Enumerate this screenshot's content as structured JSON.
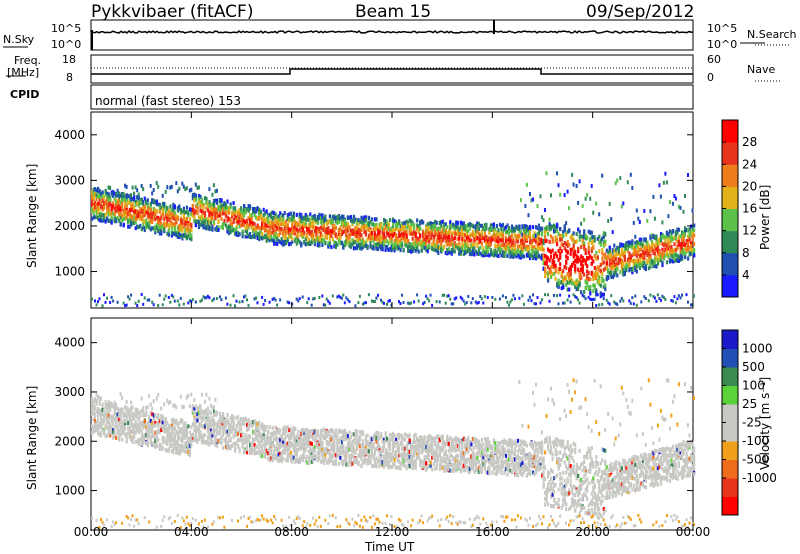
{
  "header": {
    "radar": "Pykkvibaer (fitACF)",
    "beam": "Beam 15",
    "date": "09/Sep/2012"
  },
  "noise_panel": {
    "left_label": "N.Sky",
    "right_label": "N.Search",
    "left_ticks": [
      "10^5",
      "10^0"
    ],
    "right_ticks": [
      "10^5",
      "10^0"
    ]
  },
  "freq_panel": {
    "left_label_1": "Freq.",
    "left_label_2": "[MHz]",
    "right_label": "Nave",
    "left_ticks": [
      "18",
      "8"
    ],
    "right_ticks": [
      "60",
      "0"
    ]
  },
  "cpid": {
    "label": "CPID",
    "text": "normal (fast stereo) 153"
  },
  "chart_data": [
    {
      "type": "heatmap",
      "quantity": "Power",
      "ylabel": "Slant Range [km]",
      "yticks": [
        1000,
        2000,
        3000,
        4000
      ],
      "ylim": [
        200,
        4500
      ],
      "colorbar_label": "Power [dB]",
      "colorbar_ticks": [
        "4",
        "8",
        "12",
        "16",
        "20",
        "24",
        "28"
      ],
      "colors": [
        "#1a1aff",
        "#1f4fb0",
        "#2f8a58",
        "#5cc24a",
        "#e3b21a",
        "#ee7d1c",
        "#e8341c",
        "#ff0000"
      ]
    },
    {
      "type": "heatmap",
      "quantity": "Velocity",
      "ylabel": "Slant Range [km]",
      "yticks": [
        1000,
        2000,
        3000,
        4000
      ],
      "ylim": [
        200,
        4500
      ],
      "colorbar_label": "Velocity [m s⁻¹]",
      "colorbar_ticks": [
        "1000",
        "500",
        "100",
        "25",
        "-25",
        "-100",
        "-500",
        "-1000"
      ],
      "colors": [
        "#1a1ac8",
        "#2250b4",
        "#3a8a52",
        "#5cd23a",
        "#c8c8c4",
        "#c8c8c4",
        "#f0a01a",
        "#ee6c1c",
        "#e8341c",
        "#ff0000"
      ]
    }
  ],
  "xaxis": {
    "label": "Time UT",
    "ticks": [
      "00:00",
      "04:00",
      "08:00",
      "12:00",
      "16:00",
      "20:00",
      "00:00"
    ]
  }
}
